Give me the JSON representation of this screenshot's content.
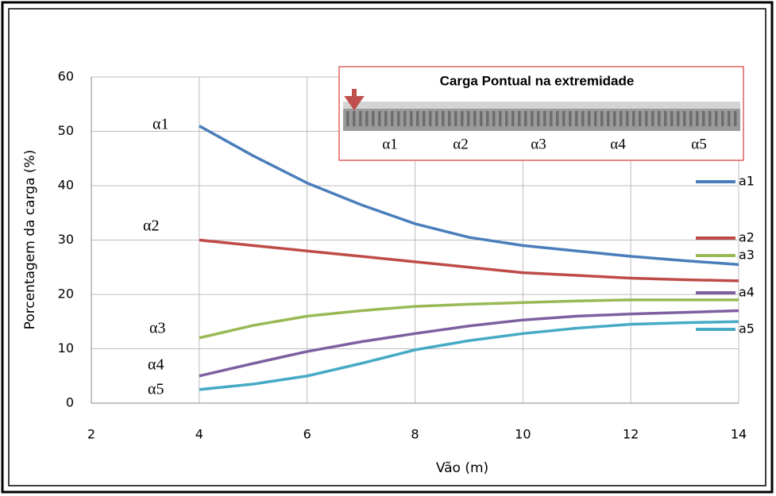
{
  "chart_data": {
    "type": "line",
    "x_label": "Vão (m)",
    "y_label": "Porcentagem da carga (%)",
    "x": [
      4,
      5,
      6,
      7,
      8,
      9,
      10,
      11,
      12,
      13,
      14
    ],
    "series": [
      {
        "name": "a1",
        "color": "#4a7ebb",
        "values": [
          51,
          45.5,
          40.5,
          36.5,
          33,
          30.5,
          29,
          28,
          27,
          26.2,
          25.5
        ]
      },
      {
        "name": "a2",
        "color": "#be4b48",
        "values": [
          30,
          29,
          28,
          27,
          26,
          25,
          24,
          23.5,
          23,
          22.7,
          22.5
        ]
      },
      {
        "name": "a3",
        "color": "#98b954",
        "values": [
          12,
          14.3,
          16,
          17,
          17.8,
          18.2,
          18.5,
          18.8,
          19,
          19,
          19
        ]
      },
      {
        "name": "a4",
        "color": "#7d60a0",
        "values": [
          5,
          7.3,
          9.5,
          11.3,
          12.8,
          14.2,
          15.3,
          16,
          16.4,
          16.7,
          17
        ]
      },
      {
        "name": "a5",
        "color": "#46aac5",
        "values": [
          2.5,
          3.5,
          5,
          7.3,
          9.8,
          11.5,
          12.8,
          13.8,
          14.5,
          14.8,
          15
        ]
      }
    ],
    "annotations": [
      "α1",
      "α2",
      "α3",
      "α4",
      "α5"
    ],
    "inset_title": "Carga Pontual na extremidade",
    "inset_labels": [
      "α1",
      "α2",
      "α3",
      "α4",
      "α5"
    ],
    "xlim": [
      2,
      14
    ],
    "xticks": [
      2,
      4,
      6,
      8,
      10,
      12,
      14
    ],
    "ylim": [
      0,
      60
    ],
    "yticks": [
      0,
      10,
      20,
      30,
      40,
      50,
      60
    ],
    "grid": true,
    "legend": "right"
  }
}
